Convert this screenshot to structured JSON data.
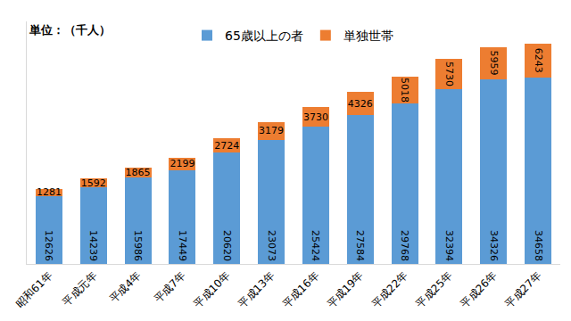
{
  "chart_data": {
    "type": "bar",
    "annotations": [
      "単位：（千人）"
    ],
    "categories": [
      "昭和61年",
      "平成元年",
      "平成4年",
      "平成7年",
      "平成10年",
      "平成13年",
      "平成16年",
      "平成19年",
      "平成22年",
      "平成25年",
      "平成26年",
      "平成27年"
    ],
    "series": [
      {
        "name": "65歳以上の者",
        "color": "#5B9BD5",
        "values": [
          12626,
          14239,
          15986,
          17449,
          20620,
          23073,
          25424,
          27584,
          29768,
          32394,
          34326,
          34658
        ]
      },
      {
        "name": "単独世帯",
        "color": "#ED7D31",
        "values": [
          1281,
          1592,
          1865,
          2199,
          2724,
          3179,
          3730,
          4326,
          5018,
          5730,
          5959,
          6243
        ]
      }
    ],
    "stacked": true,
    "data_labels": true,
    "tick_labels": "x",
    "legend": "top",
    "grid": false,
    "ylim": [
      0,
      45000
    ],
    "yticks": []
  }
}
